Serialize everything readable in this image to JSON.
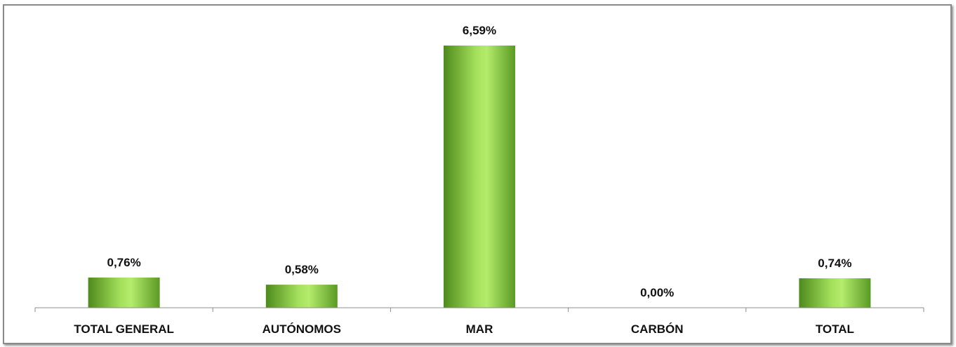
{
  "chart_data": {
    "type": "bar",
    "categories": [
      "TOTAL GENERAL",
      "AUTÓNOMOS",
      "MAR",
      "CARBÓN",
      "TOTAL"
    ],
    "values": [
      0.76,
      0.58,
      6.59,
      0.0,
      0.74
    ],
    "data_labels": [
      "0,76%",
      "0,58%",
      "6,59%",
      "0,00%",
      "0,74%"
    ],
    "title": "",
    "xlabel": "",
    "ylabel": "",
    "ylim": [
      0,
      6.59
    ],
    "grid": false,
    "legend": "none",
    "colors": {
      "bar_dark": "#4e8a1c",
      "bar_light": "#b4ec6c",
      "axis": "#8c8c8c",
      "text": "#111111"
    }
  }
}
